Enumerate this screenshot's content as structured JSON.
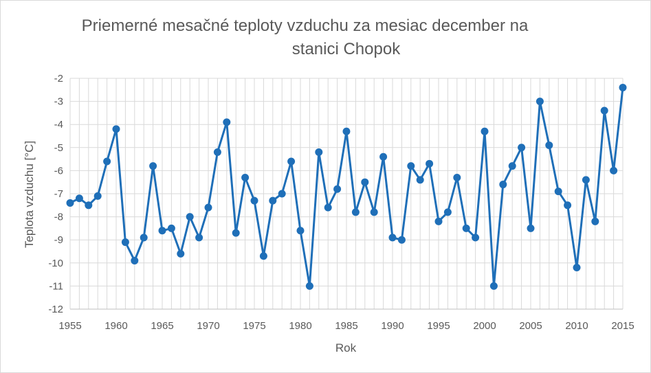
{
  "chart_data": {
    "type": "line",
    "title_line1": "Priemerné mesačné teploty vzduchu za mesiac december na",
    "title_line2": "stanici Chopok",
    "xlabel": "Rok",
    "ylabel": "Teplota vzduchu [°C]",
    "xlim": [
      1955,
      2015
    ],
    "ylim": [
      -12,
      -2
    ],
    "x_ticks": [
      1955,
      1960,
      1965,
      1970,
      1975,
      1980,
      1985,
      1990,
      1995,
      2000,
      2005,
      2010,
      2015
    ],
    "y_ticks": [
      -2,
      -3,
      -4,
      -5,
      -6,
      -7,
      -8,
      -9,
      -10,
      -11,
      -12
    ],
    "grid": true,
    "legend": "none",
    "color": "#1f6fb8",
    "series": [
      {
        "x": [
          1955,
          1956,
          1957,
          1958,
          1959,
          1960,
          1961,
          1962,
          1963,
          1964,
          1965,
          1966,
          1967,
          1968,
          1969,
          1970,
          1971,
          1972,
          1973,
          1974,
          1975,
          1976,
          1977,
          1978,
          1979,
          1980,
          1981,
          1982,
          1983,
          1984,
          1985,
          1986,
          1987,
          1988,
          1989,
          1990,
          1991,
          1992,
          1993,
          1994,
          1995,
          1996,
          1997,
          1998,
          1999,
          2000,
          2001,
          2002,
          2003,
          2004,
          2005,
          2006,
          2007,
          2008,
          2009,
          2010,
          2011,
          2012,
          2013,
          2014,
          2015
        ],
        "values": [
          -7.4,
          -7.2,
          -7.5,
          -7.1,
          -5.6,
          -4.2,
          -9.1,
          -9.9,
          -8.9,
          -5.8,
          -8.6,
          -8.5,
          -9.6,
          -8.0,
          -8.9,
          -7.6,
          -5.2,
          -3.9,
          -8.7,
          -6.3,
          -7.3,
          -9.7,
          -7.3,
          -7.0,
          -5.6,
          -8.6,
          -11.0,
          -5.2,
          -7.6,
          -6.8,
          -4.3,
          -7.8,
          -6.5,
          -7.8,
          -5.4,
          -8.9,
          -9.0,
          -5.8,
          -6.4,
          -5.7,
          -8.2,
          -7.8,
          -6.3,
          -8.5,
          -8.9,
          -4.3,
          -11.0,
          -6.6,
          -5.8,
          -5.0,
          -8.5,
          -3.0,
          -4.9,
          -6.9,
          -7.5,
          -10.2,
          -6.4,
          -8.2,
          -3.4,
          -6.0,
          -2.4
        ]
      }
    ]
  }
}
